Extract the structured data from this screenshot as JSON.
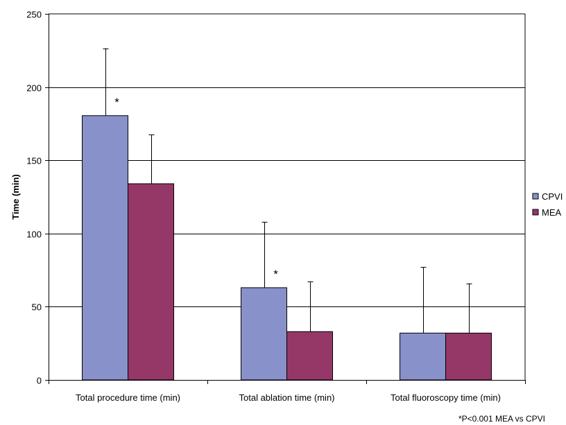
{
  "chart_data": {
    "type": "bar",
    "title": "",
    "xlabel": "",
    "ylabel": "Time (min)",
    "ylim": [
      0,
      250
    ],
    "yticks": [
      0,
      50,
      100,
      150,
      200,
      250
    ],
    "grid": "horizontal",
    "legend_position": "right",
    "categories": [
      "Total procedure time (min)",
      "Total ablation time (min)",
      "Total fluoroscopy time (min)"
    ],
    "series": [
      {
        "name": "CPVI",
        "color": "#8891C9",
        "values": [
          180.5,
          63,
          32
        ],
        "error_upper": [
          46,
          45,
          45
        ]
      },
      {
        "name": "MEA",
        "color": "#953767",
        "values": [
          134,
          33,
          32
        ],
        "error_upper": [
          33.5,
          34,
          34
        ]
      }
    ],
    "annotations": [
      {
        "text": "*",
        "category_index": 0,
        "series_index": 0
      },
      {
        "text": "*",
        "category_index": 1,
        "series_index": 0
      }
    ],
    "footnote": "*P<0.001 MEA vs CPVI"
  }
}
